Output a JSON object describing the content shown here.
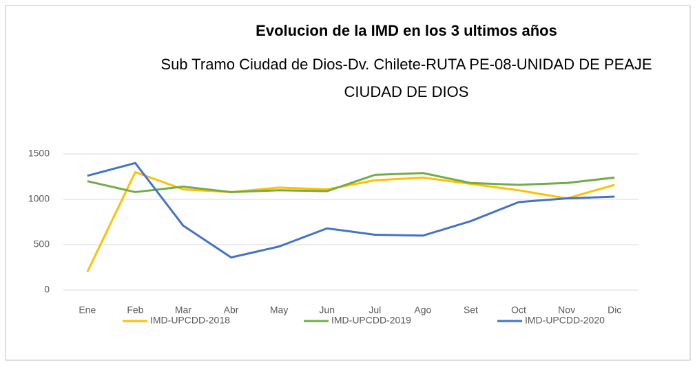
{
  "chart_data": {
    "type": "line",
    "title": "Evolucion de la IMD  en los 3 ultimos años",
    "subtitle": "Sub Tramo Ciudad de Dios-Dv. Chilete-RUTA PE-08-UNIDAD DE PEAJE CIUDAD DE DIOS",
    "categories": [
      "Ene",
      "Feb",
      "Mar",
      "Abr",
      "May",
      "Jun",
      "Jul",
      "Ago",
      "Set",
      "Oct",
      "Nov",
      "Dic"
    ],
    "series": [
      {
        "name": "IMD-UPCDD-2018",
        "color": "#ffc000",
        "values": [
          200,
          1300,
          1110,
          1080,
          1130,
          1110,
          1210,
          1240,
          1170,
          1100,
          1010,
          1160
        ]
      },
      {
        "name": "IMD-UPCDD-2019",
        "color": "#70ad47",
        "values": [
          1200,
          1080,
          1140,
          1080,
          1100,
          1090,
          1270,
          1290,
          1180,
          1160,
          1180,
          1240
        ]
      },
      {
        "name": "IMD-UPCDD-2020",
        "color": "#4472c4",
        "values": [
          1260,
          1400,
          710,
          360,
          480,
          680,
          610,
          600,
          760,
          970,
          1010,
          1030
        ]
      }
    ],
    "ylim": [
      0,
      1500
    ],
    "yticks": [
      0,
      500,
      1000,
      1500
    ],
    "grid": true,
    "legend": "bottom"
  }
}
